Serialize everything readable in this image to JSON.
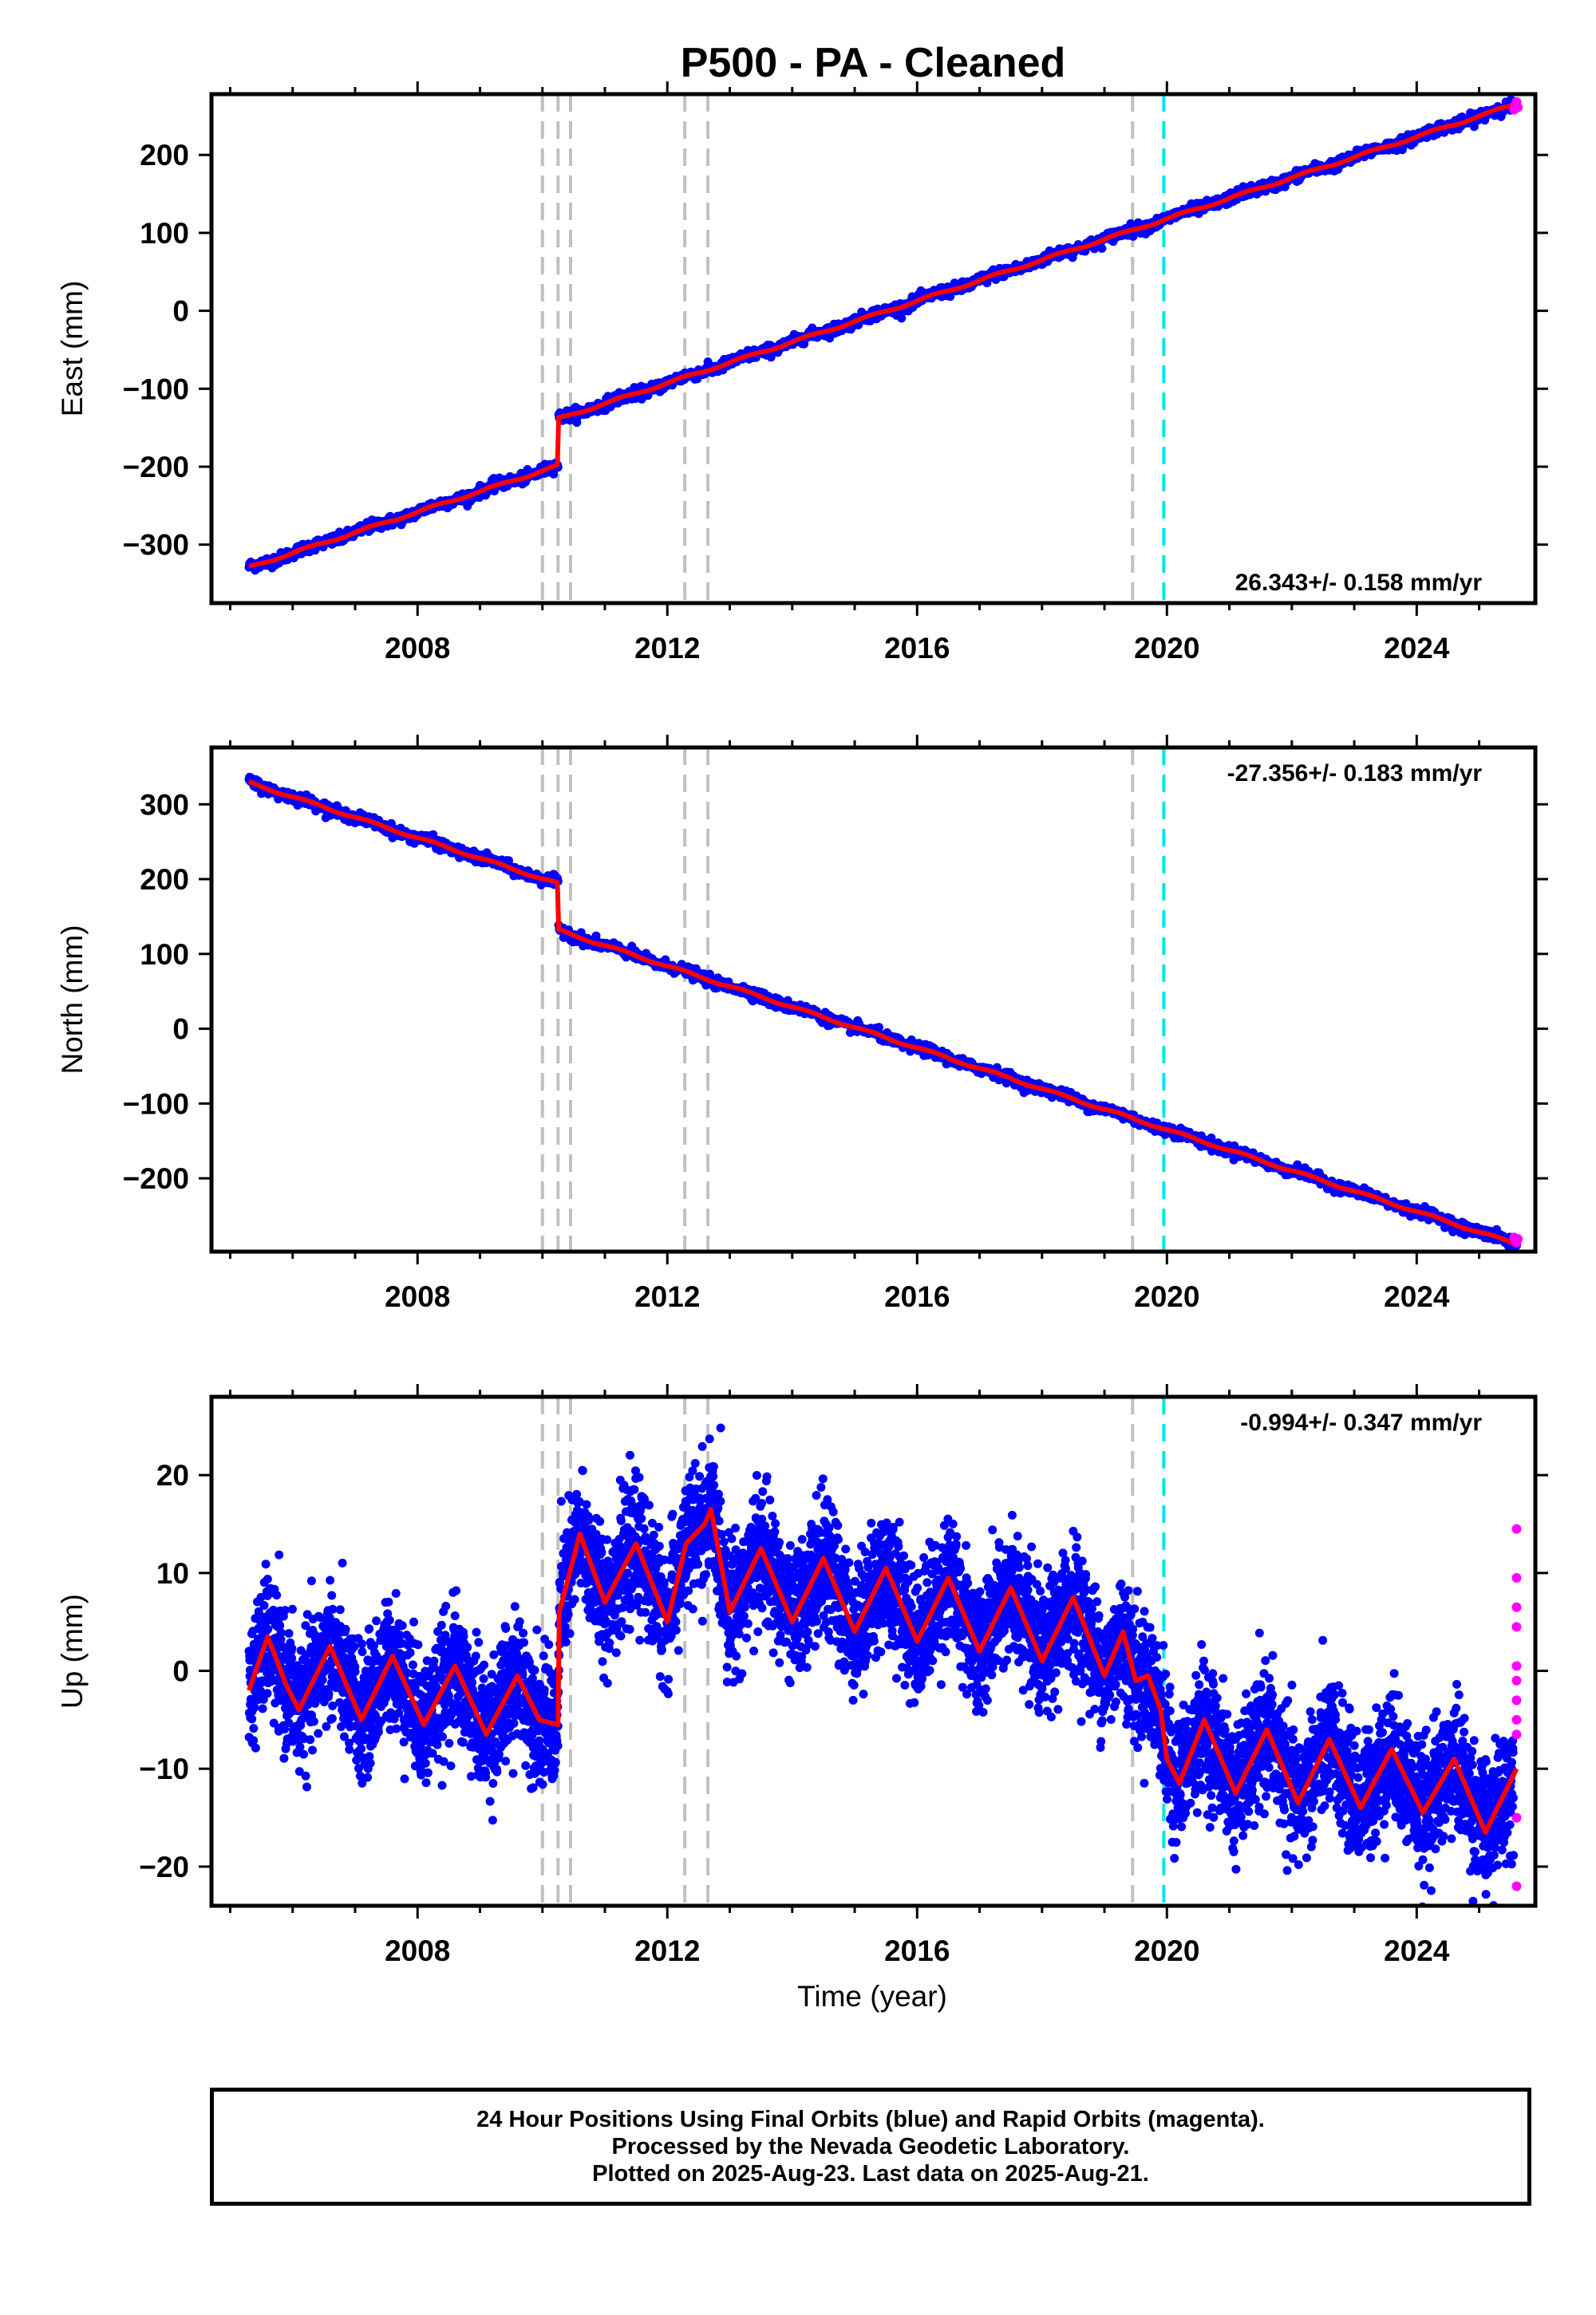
{
  "title": "P500  - PA - Cleaned",
  "xlabel": "Time (year)",
  "footer": {
    "line1": "24 Hour Positions Using Final Orbits (blue) and Rapid Orbits (magenta).",
    "line2": "Processed by the Nevada Geodetic Laboratory.",
    "line3": "Plotted on 2025-Aug-23. Last data on 2025-Aug-21."
  },
  "colors": {
    "final": "#0000ff",
    "rapid": "#ff00ff",
    "model": "#ff0000",
    "event": "#c0c0c0",
    "cyan_event": "#00e5ee"
  },
  "chart_data": [
    {
      "type": "scatter",
      "component": "east",
      "ylabel": "East (mm)",
      "rate": "26.343+/- 0.158 mm/yr",
      "rate_position": "bottom-right",
      "xlim": [
        2004.7,
        2025.9
      ],
      "ylim": [
        -375,
        278
      ],
      "yticks": [
        -300,
        -200,
        -100,
        0,
        100,
        200
      ],
      "ytick_labels": [
        "−300",
        "−200",
        "−100",
        "0",
        "100",
        "200"
      ],
      "xticks": [
        2008,
        2012,
        2016,
        2020,
        2024
      ],
      "xtick_labels": [
        "2008",
        "2012",
        "2016",
        "2020",
        "2024"
      ],
      "model": {
        "t0": 2005.3,
        "t1": 2025.6,
        "ref_year": 2020.0,
        "ref_value": 118,
        "rate": 26.343,
        "step_year": 2010.25,
        "step": 60,
        "annual_amp": 1.5,
        "noise": 3.5
      },
      "rapid_points": [
        [
          2025.56,
          258
        ],
        [
          2025.58,
          264
        ],
        [
          2025.6,
          268
        ],
        [
          2025.62,
          261
        ]
      ]
    },
    {
      "type": "scatter",
      "component": "north",
      "ylabel": "North (mm)",
      "rate": "-27.356+/- 0.183 mm/yr",
      "rate_position": "top-right",
      "xlim": [
        2004.7,
        2025.9
      ],
      "ylim": [
        -298,
        376
      ],
      "yticks": [
        -200,
        -100,
        0,
        100,
        200,
        300
      ],
      "ytick_labels": [
        "−200",
        "−100",
        "0",
        "100",
        "200",
        "300"
      ],
      "xticks": [
        2008,
        2012,
        2016,
        2020,
        2024
      ],
      "xtick_labels": [
        "2008",
        "2012",
        "2016",
        "2020",
        "2024"
      ],
      "model": {
        "t0": 2005.3,
        "t1": 2025.6,
        "ref_year": 2020.0,
        "ref_value": -135,
        "rate": -27.356,
        "step_year": 2010.25,
        "step": -62,
        "annual_amp": 1.5,
        "noise": 3.5
      },
      "rapid_points": [
        [
          2025.56,
          -279
        ],
        [
          2025.58,
          -283
        ],
        [
          2025.6,
          -286
        ],
        [
          2025.62,
          -281
        ]
      ]
    },
    {
      "type": "scatter",
      "component": "up",
      "ylabel": "Up (mm)",
      "rate": "-0.994+/- 0.347 mm/yr",
      "rate_position": "top-right",
      "xlim": [
        2004.7,
        2025.9
      ],
      "ylim": [
        -24,
        28
      ],
      "yticks": [
        -20,
        -10,
        0,
        10,
        20
      ],
      "ytick_labels": [
        "−20",
        "−10",
        "0",
        "10",
        "20"
      ],
      "xticks": [
        2008,
        2012,
        2016,
        2020,
        2024
      ],
      "xtick_labels": [
        "2008",
        "2012",
        "2016",
        "2020",
        "2024"
      ],
      "model_curve": [
        [
          2005.3,
          -2
        ],
        [
          2005.6,
          3.5
        ],
        [
          2005.9,
          -1.5
        ],
        [
          2006.1,
          -4
        ],
        [
          2006.6,
          2.5
        ],
        [
          2007.1,
          -5
        ],
        [
          2007.6,
          1.5
        ],
        [
          2008.1,
          -5.5
        ],
        [
          2008.6,
          0.5
        ],
        [
          2009.1,
          -6.5
        ],
        [
          2009.6,
          -0.5
        ],
        [
          2009.95,
          -5
        ],
        [
          2010.25,
          -5.5
        ],
        [
          2010.27,
          6
        ],
        [
          2010.6,
          14
        ],
        [
          2011.0,
          7
        ],
        [
          2011.5,
          13
        ],
        [
          2012.0,
          5
        ],
        [
          2012.3,
          13
        ],
        [
          2012.6,
          15
        ],
        [
          2012.7,
          16.5
        ],
        [
          2013.0,
          6
        ],
        [
          2013.5,
          12.5
        ],
        [
          2014.0,
          5
        ],
        [
          2014.5,
          11.5
        ],
        [
          2015.0,
          4
        ],
        [
          2015.5,
          10.5
        ],
        [
          2016.0,
          3
        ],
        [
          2016.5,
          9.5
        ],
        [
          2017.0,
          2
        ],
        [
          2017.5,
          8.5
        ],
        [
          2018.0,
          1
        ],
        [
          2018.5,
          7.5
        ],
        [
          2019.0,
          -0.5
        ],
        [
          2019.3,
          4
        ],
        [
          2019.5,
          -1
        ],
        [
          2019.7,
          -0.5
        ],
        [
          2019.9,
          -4
        ],
        [
          2020.0,
          -9
        ],
        [
          2020.2,
          -11.5
        ],
        [
          2020.6,
          -5
        ],
        [
          2021.1,
          -12.5
        ],
        [
          2021.6,
          -6
        ],
        [
          2022.1,
          -13.5
        ],
        [
          2022.6,
          -7
        ],
        [
          2023.1,
          -14
        ],
        [
          2023.6,
          -8
        ],
        [
          2024.1,
          -14.5
        ],
        [
          2024.6,
          -9
        ],
        [
          2025.1,
          -16.5
        ],
        [
          2025.6,
          -10
        ]
      ],
      "scatter_model": {
        "noise": 3.2,
        "t0": 2005.3,
        "t1": 2025.55
      },
      "rapid_points": [
        [
          2025.6,
          14.5
        ],
        [
          2025.6,
          9.5
        ],
        [
          2025.6,
          6.5
        ],
        [
          2025.6,
          4.5
        ],
        [
          2025.6,
          0.5
        ],
        [
          2025.6,
          -1
        ],
        [
          2025.6,
          -3
        ],
        [
          2025.6,
          -5
        ],
        [
          2025.6,
          -6.5
        ],
        [
          2025.6,
          -15
        ],
        [
          2025.6,
          -22
        ]
      ]
    }
  ],
  "events": {
    "gray": [
      2010.0,
      2010.25,
      2010.45,
      2012.28,
      2012.65,
      2019.45
    ],
    "cyan": [
      2019.95
    ]
  }
}
